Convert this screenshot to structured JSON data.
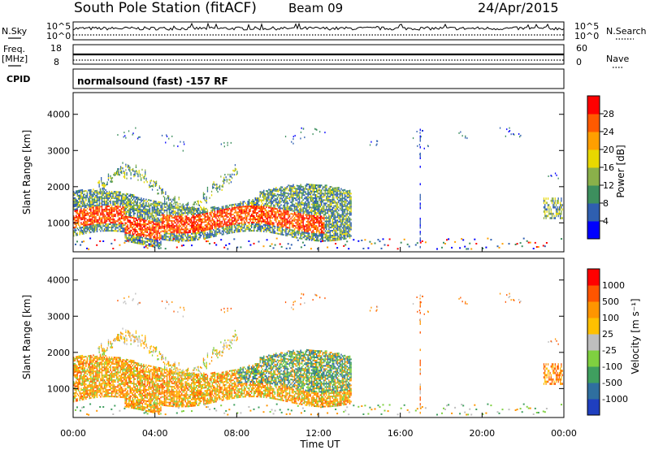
{
  "header": {
    "station": "South Pole Station (fitACF)",
    "beam": "Beam 09",
    "date": "24/Apr/2015"
  },
  "summary_panels": {
    "nsky_label": "N.Sky",
    "nsky_ticks": [
      "10^5",
      "10^0"
    ],
    "nsearch_label": "N.Search",
    "nsearch_ticks": [
      "10^5",
      "10^0"
    ],
    "freq_label": "Freq.",
    "freq_unit": "[MHz]",
    "freq_ticks": [
      "18",
      "8"
    ],
    "nave_label": "Nave",
    "nave_ticks": [
      "60",
      "0"
    ],
    "cpid_label": "CPID",
    "cpid_text": "normalsound (fast) -157 RF"
  },
  "colors": {
    "power_scale": [
      "#0000ff",
      "#2f5fb0",
      "#3d8f5e",
      "#8ab04a",
      "#e8d800",
      "#ff9f00",
      "#ff5a00",
      "#ff0000"
    ],
    "velocity_scale": [
      "#ff0000",
      "#ff5500",
      "#ff9500",
      "#ffc000",
      "#bebebe",
      "#7fd040",
      "#3f9f5f",
      "#2f6f9f",
      "#1f3fbf"
    ]
  },
  "chart_data": [
    {
      "type": "heatmap",
      "name": "power-panel",
      "xlabel": "",
      "ylabel": "Slant Range [km]",
      "y_ticks": [
        "1000",
        "2000",
        "3000",
        "4000"
      ],
      "ylim": [
        200,
        4600
      ],
      "colorbar": {
        "label": "Power [dB]",
        "ticks": [
          "4",
          "8",
          "12",
          "16",
          "20",
          "24",
          "28"
        ],
        "range": [
          0,
          32
        ]
      }
    },
    {
      "type": "heatmap",
      "name": "velocity-panel",
      "xlabel": "Time UT",
      "x_ticks": [
        "00:00",
        "04:00",
        "08:00",
        "12:00",
        "16:00",
        "20:00",
        "00:00"
      ],
      "ylabel": "Slant Range [km]",
      "y_ticks": [
        "1000",
        "2000",
        "3000",
        "4000"
      ],
      "ylim": [
        200,
        4600
      ],
      "colorbar": {
        "label": "Velocity [m s⁻¹]",
        "ticks": [
          "1000",
          "500",
          "100",
          "25",
          "-25",
          "-100",
          "-500",
          "-1000"
        ],
        "range": [
          -1500,
          1500
        ]
      }
    }
  ]
}
